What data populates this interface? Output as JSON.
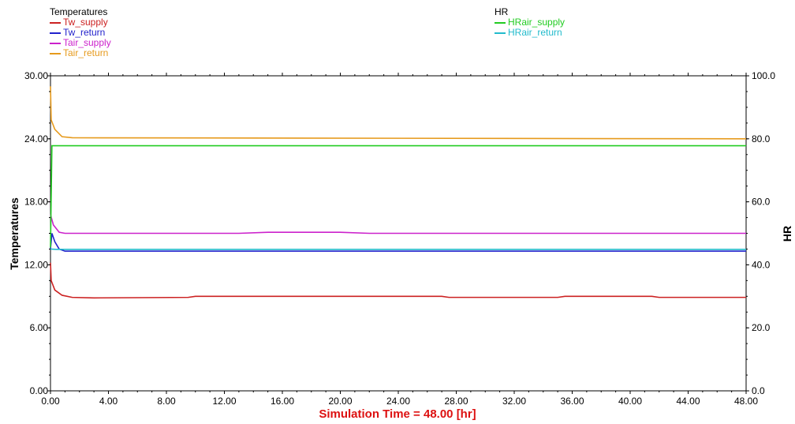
{
  "chart_data": {
    "type": "line",
    "left_axis": {
      "label": "Temperatures",
      "ylim": [
        0,
        30
      ],
      "ticks": [
        "0.00",
        "6.00",
        "12.00",
        "18.00",
        "24.00",
        "30.00"
      ]
    },
    "right_axis": {
      "label": "HR",
      "ylim": [
        0,
        100
      ],
      "ticks": [
        "0.0",
        "20.0",
        "40.0",
        "60.0",
        "80.0",
        "100.0"
      ]
    },
    "x_axis": {
      "xlim": [
        0,
        48
      ],
      "ticks": [
        "0.00",
        "4.00",
        "8.00",
        "12.00",
        "16.00",
        "20.00",
        "24.00",
        "28.00",
        "32.00",
        "36.00",
        "40.00",
        "44.00",
        "48.00"
      ]
    },
    "xlabel": "Simulation Time =  48.00 [hr]",
    "grid": false,
    "legend": [
      {
        "title": "Temperatures",
        "placement": "top-left",
        "entries": [
          "Tw_supply",
          "Tw_return",
          "Tair_supply",
          "Tair_return"
        ]
      },
      {
        "title": "HR",
        "placement": "top-center",
        "entries": [
          "HRair_supply",
          "HRair_return"
        ]
      }
    ],
    "series": [
      {
        "name": "Tw_supply",
        "axis": "left",
        "color": "#cc2222",
        "points": [
          [
            0,
            12.2
          ],
          [
            0.05,
            10.5
          ],
          [
            0.3,
            9.6
          ],
          [
            0.8,
            9.1
          ],
          [
            1.5,
            8.9
          ],
          [
            3,
            8.85
          ],
          [
            9.5,
            8.9
          ],
          [
            10,
            9.0
          ],
          [
            27,
            9.0
          ],
          [
            27.5,
            8.9
          ],
          [
            35,
            8.9
          ],
          [
            35.5,
            9.0
          ],
          [
            41.5,
            9.0
          ],
          [
            42,
            8.9
          ],
          [
            48,
            8.9
          ]
        ]
      },
      {
        "name": "Tw_return",
        "axis": "left",
        "color": "#2222cc",
        "points": [
          [
            0,
            13.5
          ],
          [
            0.1,
            15.0
          ],
          [
            0.3,
            14.2
          ],
          [
            0.6,
            13.5
          ],
          [
            1,
            13.3
          ],
          [
            48,
            13.3
          ]
        ]
      },
      {
        "name": "Tair_supply",
        "axis": "left",
        "color": "#cc22cc",
        "points": [
          [
            0,
            16.8
          ],
          [
            0.2,
            15.8
          ],
          [
            0.6,
            15.1
          ],
          [
            1,
            15.0
          ],
          [
            13,
            15.0
          ],
          [
            15,
            15.1
          ],
          [
            20,
            15.1
          ],
          [
            22,
            15.0
          ],
          [
            48,
            15.0
          ]
        ]
      },
      {
        "name": "Tair_return",
        "axis": "left",
        "color": "#e69a1c",
        "points": [
          [
            0,
            29.0
          ],
          [
            0.05,
            25.8
          ],
          [
            0.3,
            24.9
          ],
          [
            0.8,
            24.2
          ],
          [
            1.5,
            24.1
          ],
          [
            48,
            24.0
          ]
        ]
      },
      {
        "name": "HRair_supply",
        "axis": "right",
        "color": "#22cc22",
        "points": [
          [
            0,
            45.5
          ],
          [
            0.1,
            77.8
          ],
          [
            48,
            77.8
          ]
        ]
      },
      {
        "name": "HRair_return",
        "axis": "right",
        "color": "#22bbcc",
        "points": [
          [
            0,
            45.0
          ],
          [
            0.4,
            44.9
          ],
          [
            48,
            44.9
          ]
        ]
      }
    ]
  }
}
